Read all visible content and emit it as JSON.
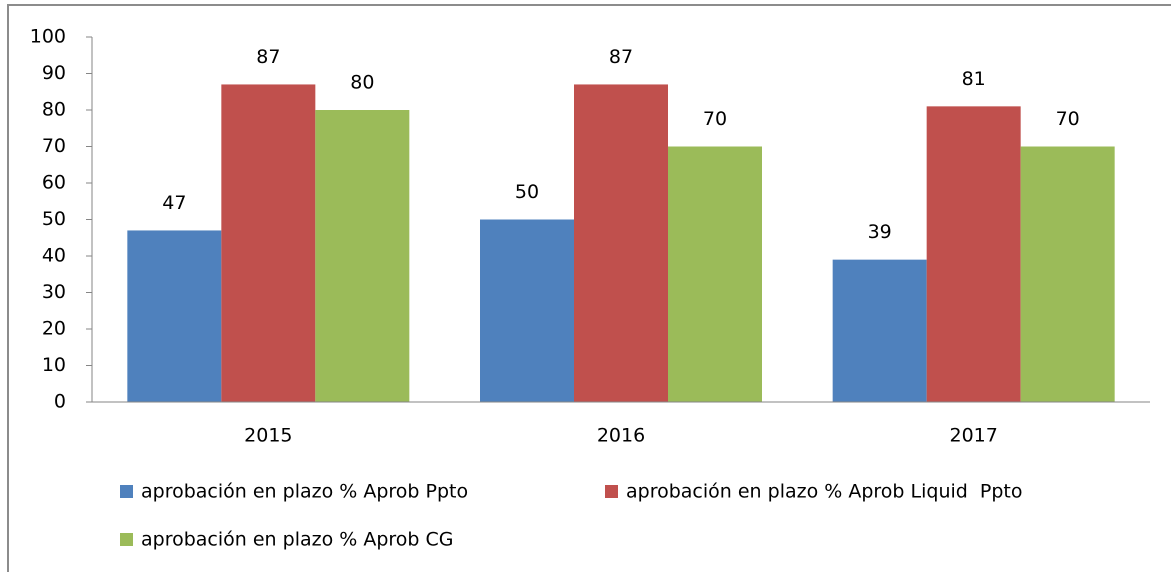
{
  "chart_data": {
    "type": "bar",
    "categories": [
      "2015",
      "2016",
      "2017"
    ],
    "series": [
      {
        "name": "aprobación en plazo % Aprob Ppto",
        "color": "#4f81bd",
        "values": [
          47,
          50,
          39
        ]
      },
      {
        "name": "aprobación en plazo % Aprob Liquid  Ppto",
        "color": "#c0504d",
        "values": [
          87,
          87,
          81
        ]
      },
      {
        "name": "aprobación en plazo % Aprob CG",
        "color": "#9bbb59",
        "values": [
          80,
          70,
          70
        ]
      }
    ],
    "ylim": [
      0,
      100
    ],
    "yticks": [
      0,
      10,
      20,
      30,
      40,
      50,
      60,
      70,
      80,
      90,
      100
    ],
    "grid": false,
    "legend": "bottom"
  }
}
